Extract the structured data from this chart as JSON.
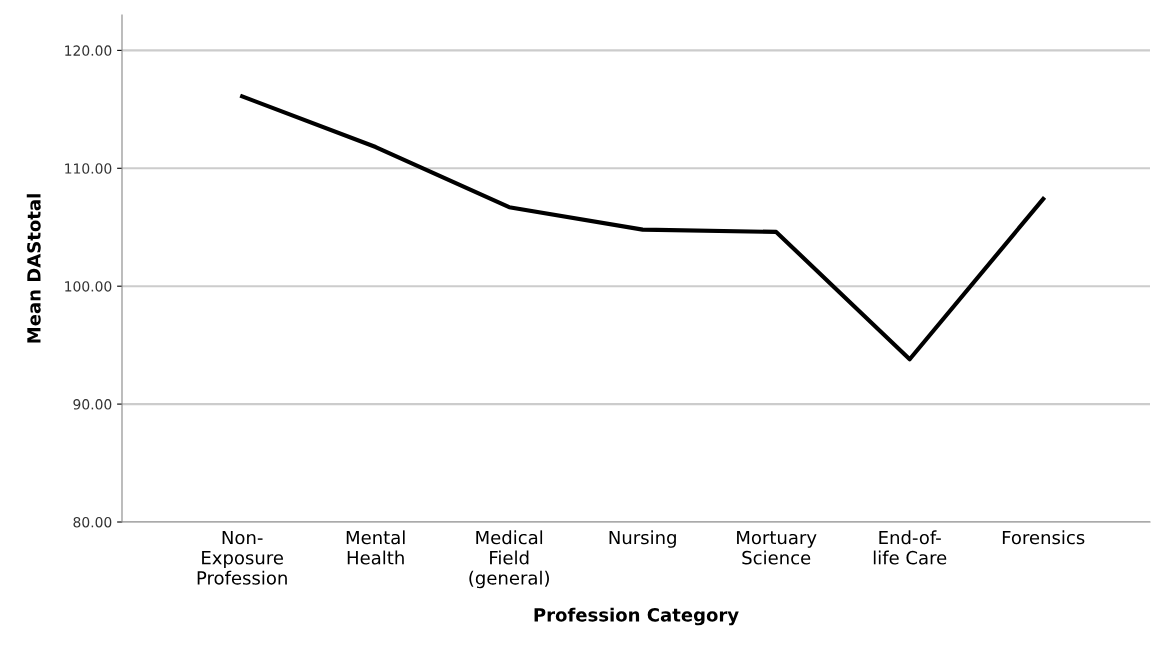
{
  "chart_data": {
    "type": "line",
    "xlabel": "Profession Category",
    "ylabel": "Mean DAStotal",
    "categories": [
      "Non-\nExposure\nProfession",
      "Mental\nHealth",
      "Medical\nField\n(general)",
      "Nursing",
      "Mortuary\nScience",
      "End-of-\nlife Care",
      "Forensics"
    ],
    "series": [
      {
        "color": "#000000",
        "values": [
          116.1,
          111.8,
          106.7,
          104.8,
          104.6,
          93.8,
          107.4
        ]
      }
    ],
    "ylim": [
      80,
      123
    ],
    "yticks": [
      {
        "value": 80,
        "label": "80.00"
      },
      {
        "value": 90,
        "label": "90.00"
      },
      {
        "value": 100,
        "label": "100.00"
      },
      {
        "value": 110,
        "label": "110.00"
      },
      {
        "value": 120,
        "label": "120.00"
      }
    ],
    "grid": "y",
    "marker": "none",
    "line_style": "solid"
  }
}
